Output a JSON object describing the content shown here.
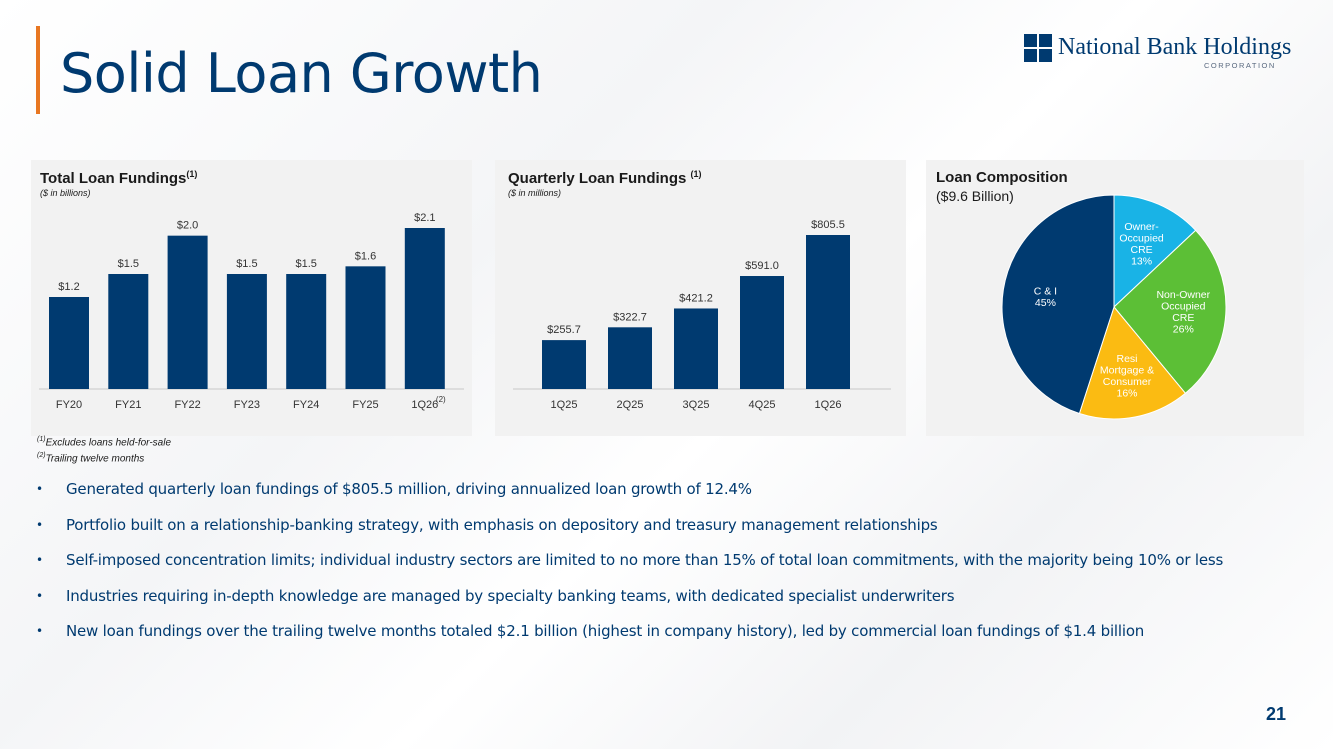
{
  "page": {
    "title": "Solid Loan Growth",
    "page_number": "21",
    "logo": {
      "name": "National Bank Holdings",
      "sub": "CORPORATION"
    }
  },
  "colors": {
    "accent": "#e87722",
    "navy": "#003a70",
    "bar": "#003a70",
    "pie_owner": "#19b3e6",
    "pie_nonowner": "#5cbf36",
    "pie_resi": "#fbbb12",
    "pie_ci": "#003a70"
  },
  "panels": {
    "total": {
      "title": "Total Loan Fundings",
      "sup": "(1)",
      "subtitle": "($ in billions)"
    },
    "quarterly": {
      "title": "Quarterly Loan Fundings ",
      "sup": "(1)",
      "subtitle": "($ in millions)"
    },
    "composition": {
      "title": "Loan Composition",
      "subtitle": "($9.6 Billion)"
    }
  },
  "chart_data": [
    {
      "type": "bar",
      "title": "Total Loan Fundings",
      "categories": [
        "FY20",
        "FY21",
        "FY22",
        "FY23",
        "FY24",
        "FY25",
        "1Q26"
      ],
      "category_notes": [
        "",
        "",
        "",
        "",
        "",
        "",
        "(2)"
      ],
      "values": [
        1.2,
        1.5,
        2.0,
        1.5,
        1.5,
        1.6,
        2.1
      ],
      "labels": [
        "$1.2",
        "$1.5",
        "$2.0",
        "$1.5",
        "$1.5",
        "$1.6",
        "$2.1"
      ],
      "ylim": [
        0,
        2.1
      ]
    },
    {
      "type": "bar",
      "title": "Quarterly Loan Fundings",
      "categories": [
        "1Q25",
        "2Q25",
        "3Q25",
        "4Q25",
        "1Q26"
      ],
      "values": [
        255.7,
        322.7,
        421.2,
        591.0,
        805.5
      ],
      "labels": [
        "$255.7",
        "$322.7",
        "$421.2",
        "$591.0",
        "$805.5"
      ],
      "ylim": [
        0,
        805.5
      ]
    },
    {
      "type": "pie",
      "title": "Loan Composition",
      "slices": [
        {
          "lines": [
            "Owner-",
            "Occupied",
            "CRE",
            "13%"
          ],
          "value": 13,
          "color": "#19b3e6"
        },
        {
          "lines": [
            "Non-Owner",
            "Occupied",
            "CRE",
            "26%"
          ],
          "value": 26,
          "color": "#5cbf36"
        },
        {
          "lines": [
            "Resi",
            "Mortgage &",
            "Consumer",
            "16%"
          ],
          "value": 16,
          "color": "#fbbb12"
        },
        {
          "lines": [
            "C & I",
            "45%"
          ],
          "value": 45,
          "color": "#003a70"
        }
      ]
    }
  ],
  "footnotes": [
    {
      "sup": "(1)",
      "text": "Excludes loans held-for-sale"
    },
    {
      "sup": "(2)",
      "text": "Trailing twelve months"
    }
  ],
  "bullets": [
    "Generated quarterly loan fundings of $805.5 million, driving annualized loan growth of 12.4%",
    "Portfolio built on a relationship-banking strategy, with emphasis on depository and treasury management relationships",
    "Self-imposed concentration limits; individual industry sectors are limited to no more than 15% of total loan commitments, with the majority being 10% or less",
    "Industries requiring in-depth knowledge are managed by specialty banking teams, with dedicated specialist underwriters",
    "New loan fundings over the trailing twelve months totaled $2.1 billion (highest in company history), led by commercial loan fundings of $1.4 billion"
  ],
  "bullet_symbol": "•"
}
